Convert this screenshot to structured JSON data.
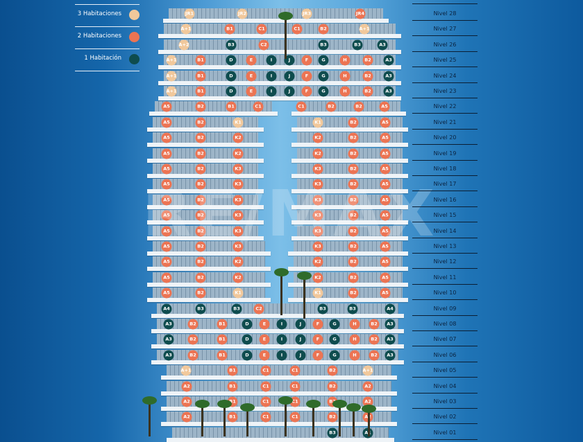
{
  "legend": [
    {
      "label": "3 Habitaciones",
      "type": "3"
    },
    {
      "label": "2 Habitaciones",
      "type": "2"
    },
    {
      "label": "1 Habitación",
      "type": "1"
    }
  ],
  "colors": {
    "3": "#F1C89B",
    "2": "#EC7453",
    "1": "#0E4C4E"
  },
  "watermark": "RE/MAX",
  "levels": [
    {
      "label": "Nivel 28",
      "n": 28,
      "units": [
        [
          "JR1",
          "3"
        ],
        [
          "JR2",
          "3"
        ],
        [
          "JR3",
          "3"
        ],
        [
          "JR4",
          "2"
        ]
      ]
    },
    {
      "label": "Nivel 27",
      "n": 27,
      "units": [
        [
          "A+1",
          "3"
        ],
        [
          "B1",
          "2"
        ],
        [
          "C1",
          "2"
        ],
        [
          "C1",
          "2"
        ],
        [
          "B2",
          "2"
        ],
        [
          "A+1",
          "3"
        ]
      ]
    },
    {
      "label": "Nivel 26",
      "n": 26,
      "units": [
        [
          "A+2",
          "3"
        ],
        [
          "B3",
          "1"
        ],
        [
          "C2",
          "2"
        ],
        [
          "B3",
          "1"
        ],
        [
          "B3",
          "1"
        ],
        [
          "A3",
          "1"
        ]
      ]
    },
    {
      "label": "Nivel 25",
      "n": 25,
      "units": [
        [
          "A+1",
          "3"
        ],
        [
          "B1",
          "2"
        ],
        [
          "D",
          "1"
        ],
        [
          "E",
          "2"
        ],
        [
          "I",
          "1"
        ],
        [
          "J",
          "1"
        ],
        [
          "F",
          "2"
        ],
        [
          "G",
          "1"
        ],
        [
          "H",
          "2"
        ],
        [
          "B2",
          "2"
        ],
        [
          "A3",
          "1"
        ]
      ]
    },
    {
      "label": "Nivel 24",
      "n": 24,
      "units": [
        [
          "A+1",
          "3"
        ],
        [
          "B1",
          "2"
        ],
        [
          "D",
          "1"
        ],
        [
          "E",
          "2"
        ],
        [
          "I",
          "1"
        ],
        [
          "J",
          "1"
        ],
        [
          "F",
          "2"
        ],
        [
          "G",
          "1"
        ],
        [
          "H",
          "2"
        ],
        [
          "B2",
          "2"
        ],
        [
          "A3",
          "1"
        ]
      ]
    },
    {
      "label": "Nivel 23",
      "n": 23,
      "units": [
        [
          "A+1",
          "3"
        ],
        [
          "B1",
          "2"
        ],
        [
          "D",
          "1"
        ],
        [
          "E",
          "2"
        ],
        [
          "I",
          "1"
        ],
        [
          "J",
          "1"
        ],
        [
          "F",
          "2"
        ],
        [
          "G",
          "1"
        ],
        [
          "H",
          "2"
        ],
        [
          "B2",
          "2"
        ],
        [
          "A3",
          "1"
        ]
      ]
    },
    {
      "label": "Nivel 22",
      "n": 22,
      "units": [
        [
          "A5",
          "2"
        ],
        [
          "B2",
          "2"
        ],
        [
          "B1",
          "2"
        ],
        [
          "C1",
          "2"
        ],
        [
          "C1",
          "2"
        ],
        [
          "B2",
          "2"
        ],
        [
          "B2",
          "2"
        ],
        [
          "A5",
          "2"
        ]
      ]
    },
    {
      "label": "Nivel 21",
      "n": 21,
      "units": [
        [
          "A5",
          "2"
        ],
        [
          "B2",
          "2"
        ],
        [
          "K1",
          "3"
        ],
        [
          "K1",
          "3"
        ],
        [
          "B2",
          "2"
        ],
        [
          "A5",
          "2"
        ]
      ]
    },
    {
      "label": "Nivel 20",
      "n": 20,
      "units": [
        [
          "A5",
          "2"
        ],
        [
          "B2",
          "2"
        ],
        [
          "K2",
          "2"
        ],
        [
          "K2",
          "2"
        ],
        [
          "B2",
          "2"
        ],
        [
          "A5",
          "2"
        ]
      ]
    },
    {
      "label": "Nivel 19",
      "n": 19,
      "units": [
        [
          "A5",
          "2"
        ],
        [
          "B2",
          "2"
        ],
        [
          "K2",
          "2"
        ],
        [
          "K2",
          "2"
        ],
        [
          "B2",
          "2"
        ],
        [
          "A5",
          "2"
        ]
      ]
    },
    {
      "label": "Nivel 18",
      "n": 18,
      "units": [
        [
          "A5",
          "2"
        ],
        [
          "B2",
          "2"
        ],
        [
          "K3",
          "2"
        ],
        [
          "K3",
          "2"
        ],
        [
          "B2",
          "2"
        ],
        [
          "A5",
          "2"
        ]
      ]
    },
    {
      "label": "Nivel 17",
      "n": 17,
      "units": [
        [
          "A5",
          "2"
        ],
        [
          "B2",
          "2"
        ],
        [
          "K3",
          "2"
        ],
        [
          "K3",
          "2"
        ],
        [
          "B2",
          "2"
        ],
        [
          "A5",
          "2"
        ]
      ]
    },
    {
      "label": "Nivel 16",
      "n": 16,
      "units": [
        [
          "A5",
          "2"
        ],
        [
          "B2",
          "2"
        ],
        [
          "K3",
          "2"
        ],
        [
          "K3",
          "2"
        ],
        [
          "B2",
          "2"
        ],
        [
          "A5",
          "2"
        ]
      ]
    },
    {
      "label": "Nivel 15",
      "n": 15,
      "units": [
        [
          "A5",
          "2"
        ],
        [
          "B2",
          "2"
        ],
        [
          "K3",
          "2"
        ],
        [
          "K3",
          "2"
        ],
        [
          "B2",
          "2"
        ],
        [
          "A5",
          "2"
        ]
      ]
    },
    {
      "label": "Nivel 14",
      "n": 14,
      "units": [
        [
          "A5",
          "2"
        ],
        [
          "B2",
          "2"
        ],
        [
          "K3",
          "2"
        ],
        [
          "K3",
          "2"
        ],
        [
          "B2",
          "2"
        ],
        [
          "A5",
          "2"
        ]
      ]
    },
    {
      "label": "Nivel 13",
      "n": 13,
      "units": [
        [
          "A5",
          "2"
        ],
        [
          "B2",
          "2"
        ],
        [
          "K3",
          "2"
        ],
        [
          "K3",
          "2"
        ],
        [
          "B2",
          "2"
        ],
        [
          "A5",
          "2"
        ]
      ]
    },
    {
      "label": "Nivel 12",
      "n": 12,
      "units": [
        [
          "A5",
          "2"
        ],
        [
          "B2",
          "2"
        ],
        [
          "K2",
          "2"
        ],
        [
          "K2",
          "2"
        ],
        [
          "B2",
          "2"
        ],
        [
          "A5",
          "2"
        ]
      ]
    },
    {
      "label": "Nivel 11",
      "n": 11,
      "units": [
        [
          "A5",
          "2"
        ],
        [
          "B2",
          "2"
        ],
        [
          "K2",
          "2"
        ],
        [
          "K2",
          "2"
        ],
        [
          "B2",
          "2"
        ],
        [
          "A5",
          "2"
        ]
      ]
    },
    {
      "label": "Nivel 10",
      "n": 10,
      "units": [
        [
          "A5",
          "2"
        ],
        [
          "B2",
          "2"
        ],
        [
          "K1",
          "3"
        ],
        [
          "K1",
          "3"
        ],
        [
          "B2",
          "2"
        ],
        [
          "A5",
          "2"
        ]
      ]
    },
    {
      "label": "Nivel 09",
      "n": 9,
      "units": [
        [
          "A4",
          "1"
        ],
        [
          "B3",
          "1"
        ],
        [
          "B3",
          "1"
        ],
        [
          "C2",
          "2"
        ],
        [
          "B3",
          "1"
        ],
        [
          "B3",
          "1"
        ],
        [
          "A4",
          "1"
        ]
      ]
    },
    {
      "label": "Nivel 08",
      "n": 8,
      "units": [
        [
          "A3",
          "1"
        ],
        [
          "B2",
          "2"
        ],
        [
          "B1",
          "2"
        ],
        [
          "D",
          "1"
        ],
        [
          "E",
          "2"
        ],
        [
          "I",
          "1"
        ],
        [
          "J",
          "1"
        ],
        [
          "F",
          "2"
        ],
        [
          "G",
          "1"
        ],
        [
          "H",
          "2"
        ],
        [
          "B2",
          "2"
        ],
        [
          "A3",
          "1"
        ]
      ]
    },
    {
      "label": "Nivel 07",
      "n": 7,
      "units": [
        [
          "A3",
          "1"
        ],
        [
          "B2",
          "2"
        ],
        [
          "B1",
          "2"
        ],
        [
          "D",
          "1"
        ],
        [
          "E",
          "2"
        ],
        [
          "I",
          "1"
        ],
        [
          "J",
          "1"
        ],
        [
          "F",
          "2"
        ],
        [
          "G",
          "1"
        ],
        [
          "H",
          "2"
        ],
        [
          "B2",
          "2"
        ],
        [
          "A3",
          "1"
        ]
      ]
    },
    {
      "label": "Nivel 06",
      "n": 6,
      "units": [
        [
          "A3",
          "1"
        ],
        [
          "B2",
          "2"
        ],
        [
          "B1",
          "2"
        ],
        [
          "D",
          "1"
        ],
        [
          "E",
          "2"
        ],
        [
          "I",
          "1"
        ],
        [
          "J",
          "1"
        ],
        [
          "F",
          "2"
        ],
        [
          "G",
          "1"
        ],
        [
          "H",
          "2"
        ],
        [
          "B2",
          "2"
        ],
        [
          "A3",
          "1"
        ]
      ]
    },
    {
      "label": "Nivel 05",
      "n": 5,
      "units": [
        [
          "A+1",
          "3"
        ],
        [
          "B1",
          "2"
        ],
        [
          "C1",
          "2"
        ],
        [
          "C1",
          "2"
        ],
        [
          "B2",
          "2"
        ],
        [
          "A+1",
          "3"
        ]
      ]
    },
    {
      "label": "Nivel 04",
      "n": 4,
      "units": [
        [
          "A2",
          "2"
        ],
        [
          "B1",
          "2"
        ],
        [
          "C1",
          "2"
        ],
        [
          "C1",
          "2"
        ],
        [
          "B2",
          "2"
        ],
        [
          "A2",
          "2"
        ]
      ]
    },
    {
      "label": "Nivel 03",
      "n": 3,
      "units": [
        [
          "A2",
          "2"
        ],
        [
          "B1",
          "2"
        ],
        [
          "C1",
          "2"
        ],
        [
          "C1",
          "2"
        ],
        [
          "B2",
          "2"
        ],
        [
          "A2",
          "2"
        ]
      ]
    },
    {
      "label": "Nivel 02",
      "n": 2,
      "units": [
        [
          "A2",
          "2"
        ],
        [
          "B1",
          "2"
        ],
        [
          "C1",
          "2"
        ],
        [
          "C1",
          "2"
        ],
        [
          "B2",
          "2"
        ],
        [
          "A2",
          "2"
        ]
      ]
    },
    {
      "label": "Nivel 01",
      "n": 1,
      "units": [
        [
          "B3",
          "1"
        ],
        [
          "A1",
          "1"
        ]
      ]
    }
  ]
}
